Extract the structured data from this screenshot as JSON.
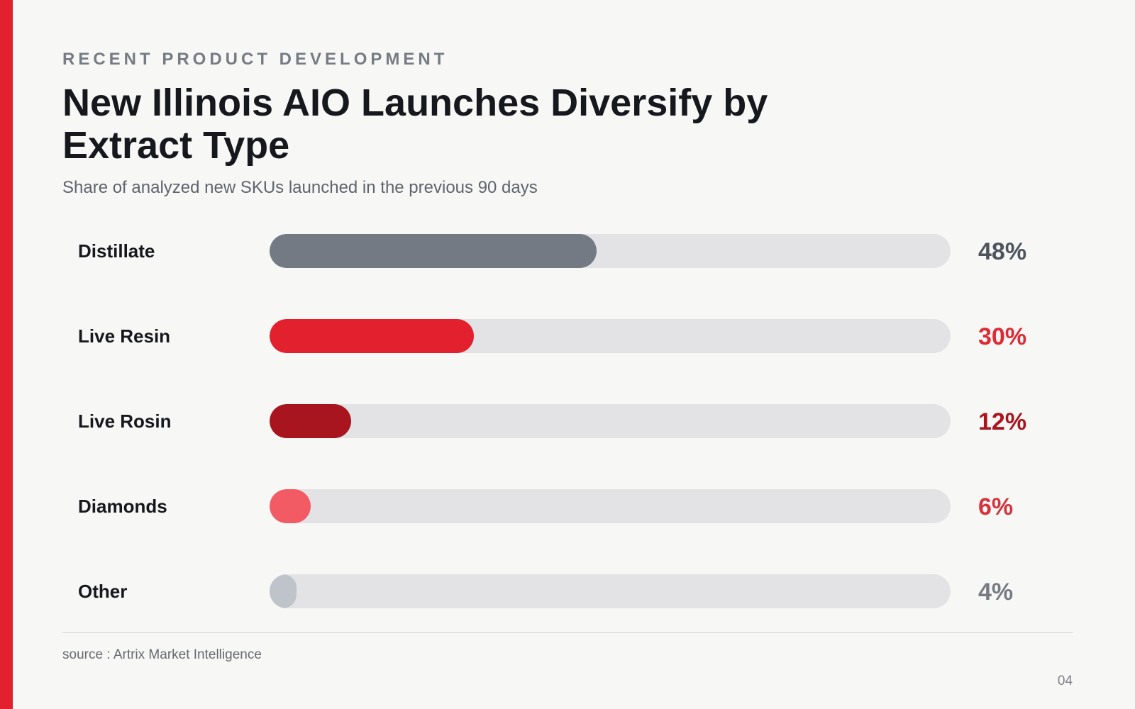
{
  "slide": {
    "eyebrow": "RECENT PRODUCT DEVELOPMENT",
    "title": "New Illinois AIO Launches Diversify by Extract Type",
    "subtitle": "Share of analyzed new SKUs launched in the previous 90 days",
    "source": "source : Artrix Market Intelligence",
    "page_number": "04",
    "accent_color": "#e3202e"
  },
  "chart_data": {
    "type": "bar",
    "orientation": "horizontal",
    "title": "New Illinois AIO Launches Diversify by Extract Type",
    "subtitle": "Share of analyzed new SKUs launched in the previous 90 days",
    "categories": [
      "Distillate",
      "Live Resin",
      "Live Rosin",
      "Diamonds",
      "Other"
    ],
    "values": [
      48,
      30,
      12,
      6,
      4
    ],
    "value_labels": [
      "48%",
      "30%",
      "12%",
      "6%",
      "4%"
    ],
    "unit": "%",
    "xlim": [
      0,
      100
    ],
    "grid": false,
    "legend": "none",
    "colors": {
      "bar_fills": [
        "#737a83",
        "#e3202e",
        "#a8151f",
        "#f25a64",
        "#bfc3ca"
      ],
      "value_text": [
        "#4e545c",
        "#dd2a35",
        "#a8151f",
        "#d8323d",
        "#767b84"
      ],
      "track": "#e3e3e5"
    }
  }
}
